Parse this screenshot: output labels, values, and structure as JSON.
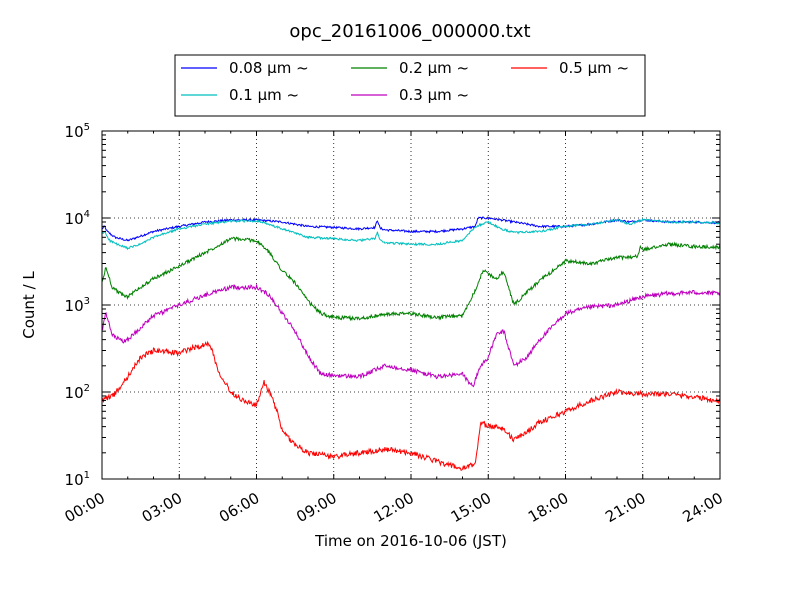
{
  "chart_data": {
    "type": "line",
    "title": "opc_20161006_000000.txt",
    "xlabel": "Time on 2016-10-06 (JST)",
    "ylabel": "Count / L",
    "y_scale": "log",
    "ylim": [
      10,
      100000
    ],
    "xlim": [
      "00:00",
      "24:00"
    ],
    "grid": true,
    "legend_position": "top-center, outside plot",
    "x_ticks": [
      "00:00",
      "03:00",
      "06:00",
      "09:00",
      "12:00",
      "15:00",
      "18:00",
      "21:00",
      "24:00"
    ],
    "y_ticks": [
      {
        "base": "10",
        "exp": "1",
        "value": 10
      },
      {
        "base": "10",
        "exp": "2",
        "value": 100
      },
      {
        "base": "10",
        "exp": "3",
        "value": 1000
      },
      {
        "base": "10",
        "exp": "4",
        "value": 10000
      },
      {
        "base": "10",
        "exp": "5",
        "value": 100000
      }
    ],
    "series": [
      {
        "name": "0.08 μm ~",
        "color": "#0000ff",
        "noise": 0.012,
        "points": [
          [
            0,
            7500
          ],
          [
            0.1,
            8000
          ],
          [
            0.2,
            7000
          ],
          [
            0.5,
            6000
          ],
          [
            1,
            5500
          ],
          [
            1.5,
            6200
          ],
          [
            2,
            7000
          ],
          [
            3,
            8000
          ],
          [
            4,
            9000
          ],
          [
            5,
            9500
          ],
          [
            6,
            9500
          ],
          [
            7,
            9000
          ],
          [
            8,
            8000
          ],
          [
            9,
            7800
          ],
          [
            10,
            7500
          ],
          [
            10.6,
            7800
          ],
          [
            10.7,
            9500
          ],
          [
            10.8,
            7600
          ],
          [
            11,
            7300
          ],
          [
            12,
            7000
          ],
          [
            13,
            7000
          ],
          [
            14,
            7500
          ],
          [
            14.5,
            8000
          ],
          [
            14.6,
            10000
          ],
          [
            15,
            10000
          ],
          [
            15.5,
            9500
          ],
          [
            16,
            9000
          ],
          [
            17,
            8000
          ],
          [
            18,
            8000
          ],
          [
            19,
            8500
          ],
          [
            20,
            9500
          ],
          [
            20.5,
            9000
          ],
          [
            21,
            9500
          ],
          [
            22,
            9000
          ],
          [
            23,
            9000
          ],
          [
            24,
            8800
          ]
        ]
      },
      {
        "name": "0.1 μm ~",
        "color": "#00bfbf",
        "noise": 0.012,
        "points": [
          [
            0,
            6500
          ],
          [
            0.1,
            7000
          ],
          [
            0.3,
            5500
          ],
          [
            0.7,
            4800
          ],
          [
            1,
            4500
          ],
          [
            1.5,
            5000
          ],
          [
            2,
            6000
          ],
          [
            3,
            7500
          ],
          [
            4,
            8500
          ],
          [
            5,
            9200
          ],
          [
            6,
            9300
          ],
          [
            7,
            7500
          ],
          [
            8,
            6000
          ],
          [
            9,
            5800
          ],
          [
            10,
            5500
          ],
          [
            10.6,
            5800
          ],
          [
            10.7,
            7000
          ],
          [
            10.8,
            5500
          ],
          [
            11,
            5200
          ],
          [
            12,
            5000
          ],
          [
            13,
            5000
          ],
          [
            14,
            5500
          ],
          [
            14.5,
            8000
          ],
          [
            15,
            9000
          ],
          [
            15.5,
            7500
          ],
          [
            16,
            6800
          ],
          [
            17,
            7000
          ],
          [
            18,
            8000
          ],
          [
            19,
            8500
          ],
          [
            20,
            9500
          ],
          [
            20.5,
            8500
          ],
          [
            21,
            9500
          ],
          [
            22,
            9000
          ],
          [
            23,
            9000
          ],
          [
            24,
            8800
          ]
        ]
      },
      {
        "name": "0.2 μm ~",
        "color": "#008000",
        "noise": 0.02,
        "points": [
          [
            0,
            1800
          ],
          [
            0.15,
            2700
          ],
          [
            0.4,
            1600
          ],
          [
            0.8,
            1300
          ],
          [
            1,
            1250
          ],
          [
            1.5,
            1600
          ],
          [
            2,
            2000
          ],
          [
            3,
            2800
          ],
          [
            4,
            4000
          ],
          [
            5,
            5800
          ],
          [
            6,
            5500
          ],
          [
            6.5,
            4000
          ],
          [
            7,
            2500
          ],
          [
            7.5,
            1800
          ],
          [
            8,
            1100
          ],
          [
            8.5,
            800
          ],
          [
            9,
            720
          ],
          [
            10,
            700
          ],
          [
            11,
            780
          ],
          [
            12,
            800
          ],
          [
            13,
            720
          ],
          [
            14,
            750
          ],
          [
            14.5,
            1500
          ],
          [
            14.8,
            2500
          ],
          [
            15,
            2300
          ],
          [
            15.3,
            2000
          ],
          [
            15.6,
            2400
          ],
          [
            16,
            1000
          ],
          [
            16.5,
            1400
          ],
          [
            17,
            1900
          ],
          [
            18,
            3200
          ],
          [
            19,
            3000
          ],
          [
            20,
            3500
          ],
          [
            20.8,
            3600
          ],
          [
            20.9,
            4700
          ],
          [
            21,
            4300
          ],
          [
            22,
            5000
          ],
          [
            23,
            4700
          ],
          [
            24,
            4600
          ]
        ]
      },
      {
        "name": "0.3 μm ~",
        "color": "#bf00bf",
        "noise": 0.025,
        "points": [
          [
            0,
            500
          ],
          [
            0.15,
            800
          ],
          [
            0.4,
            450
          ],
          [
            0.8,
            380
          ],
          [
            1,
            400
          ],
          [
            1.5,
            550
          ],
          [
            2,
            750
          ],
          [
            3,
            1000
          ],
          [
            4,
            1300
          ],
          [
            5,
            1600
          ],
          [
            6,
            1600
          ],
          [
            6.5,
            1300
          ],
          [
            7,
            800
          ],
          [
            7.5,
            500
          ],
          [
            8,
            260
          ],
          [
            8.5,
            160
          ],
          [
            9,
            155
          ],
          [
            10,
            150
          ],
          [
            11,
            200
          ],
          [
            12,
            180
          ],
          [
            13,
            150
          ],
          [
            14,
            160
          ],
          [
            14.4,
            115
          ],
          [
            14.7,
            200
          ],
          [
            15,
            250
          ],
          [
            15.3,
            450
          ],
          [
            15.6,
            500
          ],
          [
            16,
            200
          ],
          [
            16.5,
            250
          ],
          [
            17,
            400
          ],
          [
            18,
            800
          ],
          [
            19,
            950
          ],
          [
            20,
            1000
          ],
          [
            21,
            1250
          ],
          [
            22,
            1350
          ],
          [
            23,
            1400
          ],
          [
            24,
            1350
          ]
        ]
      },
      {
        "name": "0.5 μm ~",
        "color": "#ff0000",
        "noise": 0.03,
        "points": [
          [
            0,
            80
          ],
          [
            0.5,
            95
          ],
          [
            1,
            150
          ],
          [
            1.5,
            250
          ],
          [
            2,
            300
          ],
          [
            3,
            280
          ],
          [
            3.5,
            320
          ],
          [
            4.2,
            360
          ],
          [
            4.5,
            180
          ],
          [
            5,
            100
          ],
          [
            5.5,
            80
          ],
          [
            6,
            70
          ],
          [
            6.3,
            130
          ],
          [
            6.5,
            100
          ],
          [
            6.8,
            60
          ],
          [
            7,
            35
          ],
          [
            7.5,
            25
          ],
          [
            8,
            20
          ],
          [
            9,
            18
          ],
          [
            10,
            20
          ],
          [
            11,
            22
          ],
          [
            12,
            20
          ],
          [
            13,
            16
          ],
          [
            14,
            13
          ],
          [
            14.5,
            15
          ],
          [
            14.7,
            45
          ],
          [
            15,
            40
          ],
          [
            15.5,
            40
          ],
          [
            16,
            28
          ],
          [
            16.5,
            35
          ],
          [
            17,
            45
          ],
          [
            18,
            60
          ],
          [
            19,
            80
          ],
          [
            20,
            100
          ],
          [
            21,
            95
          ],
          [
            22,
            95
          ],
          [
            23,
            88
          ],
          [
            24,
            78
          ]
        ]
      }
    ]
  }
}
